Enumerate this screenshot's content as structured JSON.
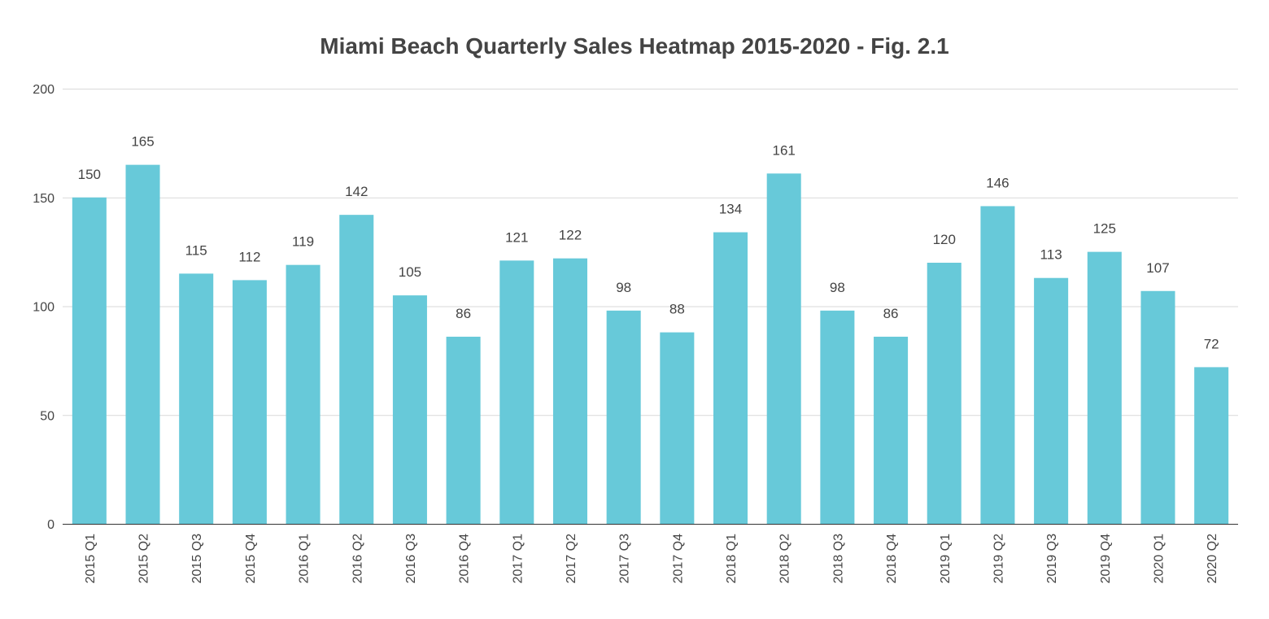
{
  "chart_data": {
    "type": "bar",
    "title": "Miami Beach Quarterly Sales Heatmap 2015-2020 - Fig. 2.1",
    "xlabel": "",
    "ylabel": "",
    "ylim": [
      0,
      200
    ],
    "yticks": [
      "0",
      "50",
      "100",
      "150",
      "200"
    ],
    "grid": true,
    "legend": "none",
    "bar_color": "#67c9d9",
    "categories": [
      "2015 Q1",
      "2015 Q2",
      "2015 Q3",
      "2015 Q4",
      "2016 Q1",
      "2016 Q2",
      "2016 Q3",
      "2016 Q4",
      "2017 Q1",
      "2017 Q2",
      "2017 Q3",
      "2017 Q4",
      "2018 Q1",
      "2018 Q2",
      "2018 Q3",
      "2018 Q4",
      "2019 Q1",
      "2019 Q2",
      "2019 Q3",
      "2019 Q4",
      "2020 Q1",
      "2020 Q2"
    ],
    "values": [
      150,
      165,
      115,
      112,
      119,
      142,
      105,
      86,
      121,
      122,
      98,
      88,
      134,
      161,
      98,
      86,
      120,
      146,
      113,
      125,
      107,
      72
    ]
  }
}
